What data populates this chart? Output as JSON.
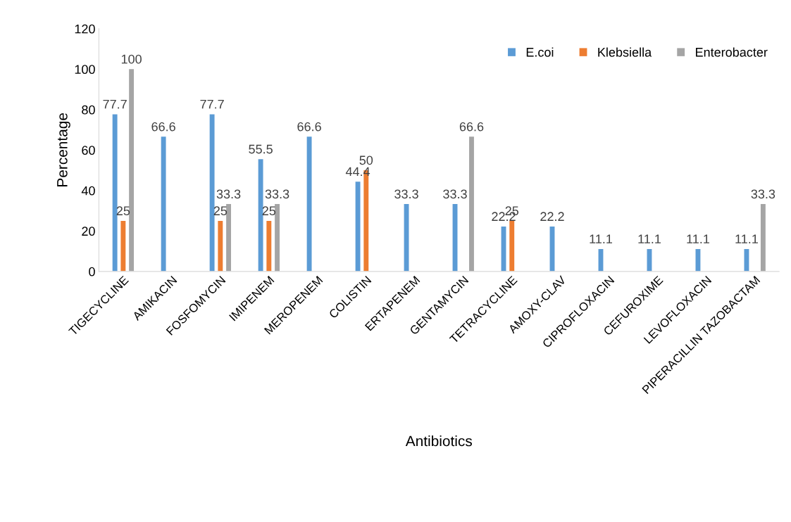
{
  "chart_data": {
    "type": "bar",
    "xlabel": "Antibiotics",
    "ylabel": "Percentage",
    "categories": [
      "TIGECYCLINE",
      "AMIKACIN",
      "FOSFOMYCIN",
      "IMIPENEM",
      "MEROPENEM",
      "COLISTIN",
      "ERTAPENEM",
      "GENTAMYCIN",
      "TETRACYCLINE",
      "AMOXY-CLAV",
      "CIPROFLOXACIN",
      "CEFUROXIME",
      "LEVOFLOXACIN",
      "PIPERACILLIN TAZOBACTAM"
    ],
    "series": [
      {
        "name": "E.coi",
        "color": "#5b9bd5",
        "values": [
          77.7,
          66.6,
          77.7,
          55.5,
          66.6,
          44.4,
          33.3,
          33.3,
          22.2,
          22.2,
          11.1,
          11.1,
          11.1,
          11.1
        ]
      },
      {
        "name": "Klebsiella",
        "color": "#ed7d31",
        "values": [
          25,
          null,
          25,
          25,
          null,
          50,
          null,
          null,
          25,
          null,
          null,
          null,
          null,
          null
        ]
      },
      {
        "name": "Enterobacter",
        "color": "#a5a5a5",
        "values": [
          100,
          null,
          33.3,
          33.3,
          null,
          null,
          null,
          66.6,
          null,
          null,
          null,
          null,
          null,
          33.3
        ]
      }
    ],
    "ylim": [
      0,
      120
    ],
    "yticks": [
      0,
      20,
      40,
      60,
      80,
      100,
      120
    ],
    "data_labels": true,
    "grid": false,
    "legend": "top right"
  }
}
